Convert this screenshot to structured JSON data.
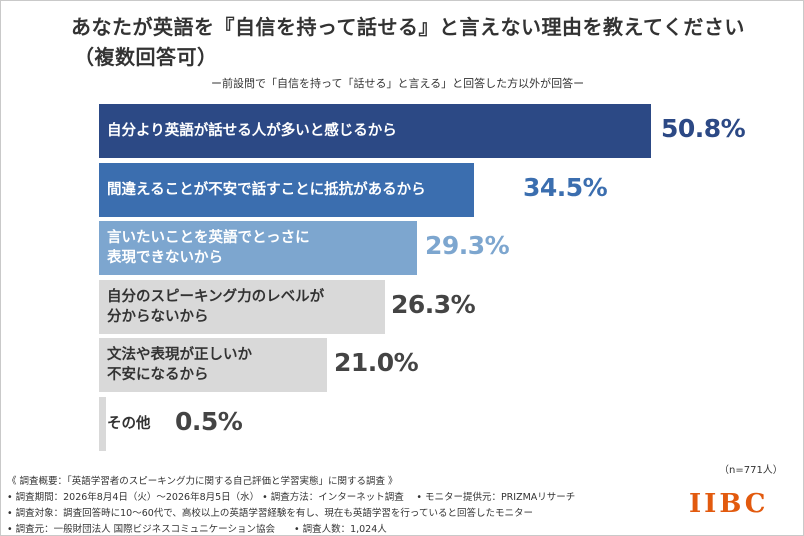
{
  "title_line1": "あなたが英語を『自信を持って話せる』と言えない理由を教えてください",
  "title_line2": "（複数回答可）",
  "subtitle": "ー前設問で「自信を持って「話せる」と言える」と回答した方以外が回答ー",
  "sample_size": "（n=771人）",
  "chart_data": {
    "type": "bar",
    "orientation": "horizontal",
    "title": "あなたが英語を『自信を持って話せる』と言えない理由を教えてください（複数回答可）",
    "categories": [
      "自分より英語が話せる人が多いと感じるから",
      "間違えることが不安で話すことに抵抗があるから",
      "言いたいことを英語でとっさに\n表現できないから",
      "自分のスピーキング力のレベルが\n分からないから",
      "文法や表現が正しいか\n不安になるから",
      "その他"
    ],
    "values": [
      50.8,
      34.5,
      29.3,
      26.3,
      21.0,
      0.5
    ],
    "value_labels": [
      "50.8%",
      "34.5%",
      "29.3%",
      "26.3%",
      "21.0%",
      "0.5%"
    ],
    "unit": "%",
    "xlim": [
      0,
      50.8
    ],
    "grid": false,
    "legend": "none",
    "bar_colors": [
      "#2c4985",
      "#3b6eaf",
      "#7da6cf",
      "#d9d9d9",
      "#d9d9d9",
      "#d9d9d9"
    ],
    "label_colors": [
      "#ffffff",
      "#ffffff",
      "#ffffff",
      "#333333",
      "#333333",
      "#333333"
    ],
    "value_colors": [
      "#2c4985",
      "#3b6eaf",
      "#7da6cf",
      "#444444",
      "#444444",
      "#444444"
    ]
  },
  "footnotes": [
    "《 調査概要：「英語学習者のスピーキング力に関する自己評価と学習実態」に関する調査 》",
    "• 調査期間：2026年8月4日（火）〜2026年8月5日（水） • 調査方法：インターネット調査　 • モニター提供元：PRIZMAリサーチ",
    "• 調査対象：調査回答時に10〜60代で、高校以上の英語学習経験を有し、現在も英語学習を行っていると回答したモニター",
    "• 調査元：一般財団法人 国際ビジネスコミュニケーション協会　　• 調査人数：1,024人"
  ],
  "logo_text": "IIBC"
}
